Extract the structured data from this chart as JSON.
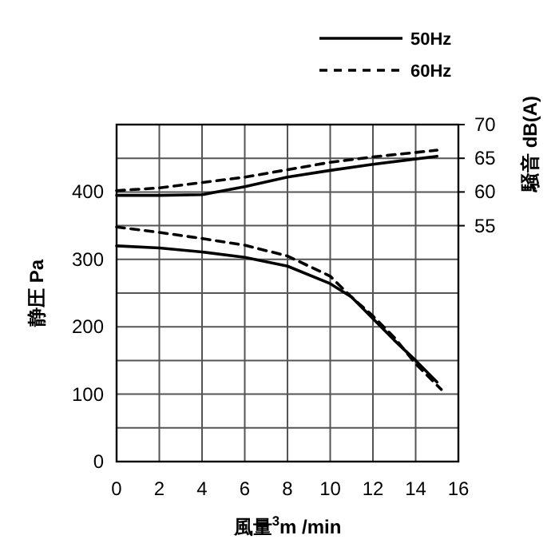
{
  "chart_data": {
    "type": "line",
    "xlabel": "風量$^{3}$m /min",
    "ylabel": "静圧 Pa",
    "y2label": "騒音 dB(A)",
    "xlim": [
      0,
      16
    ],
    "xticks": [
      0,
      2,
      4,
      6,
      8,
      10,
      12,
      14,
      16
    ],
    "ylim": [
      0,
      500
    ],
    "yticks": [
      0,
      {
        "value": 50,
        "label": null
      },
      100,
      {
        "value": 150,
        "label": null
      },
      200,
      {
        "value": 250,
        "label": null
      },
      300,
      {
        "value": 350,
        "label": null
      },
      400,
      {
        "value": 450,
        "label": null
      },
      {
        "value": 500,
        "label": null
      }
    ],
    "y2lim": [
      20,
      70
    ],
    "y2ticks": [
      55,
      60,
      65,
      70
    ],
    "grid": true,
    "legend": "top right",
    "series": [
      {
        "name": "50Hz",
        "color": "#000000",
        "line_style": "solid",
        "x": [
          0,
          2,
          4,
          6,
          8,
          10,
          11,
          12,
          13,
          14,
          15
        ],
        "values": [
          320,
          317,
          311,
          303,
          290,
          264,
          244,
          212,
          180,
          150,
          118
        ]
      },
      {
        "name": "60Hz",
        "color": "#000000",
        "line_style": "dashed",
        "x": [
          0,
          2,
          4,
          6,
          8,
          10,
          11,
          12,
          13,
          14,
          15.2
        ],
        "values": [
          348,
          340,
          331,
          321,
          305,
          275,
          244,
          216,
          184,
          145,
          107
        ]
      },
      {
        "color": "#000000",
        "line_style": "solid",
        "axis": "y2",
        "x": [
          0,
          2,
          4,
          6,
          8,
          10,
          12,
          15
        ],
        "values": [
          59.5,
          59.5,
          59.6,
          60.8,
          62.2,
          63.2,
          64.1,
          65.3
        ]
      },
      {
        "color": "#000000",
        "line_style": "dashed",
        "axis": "y2",
        "x": [
          0,
          2,
          4,
          6,
          8,
          10,
          12,
          15
        ],
        "values": [
          60.2,
          60.6,
          61.4,
          62.2,
          63.3,
          64.4,
          65.2,
          66.2
        ]
      }
    ]
  }
}
